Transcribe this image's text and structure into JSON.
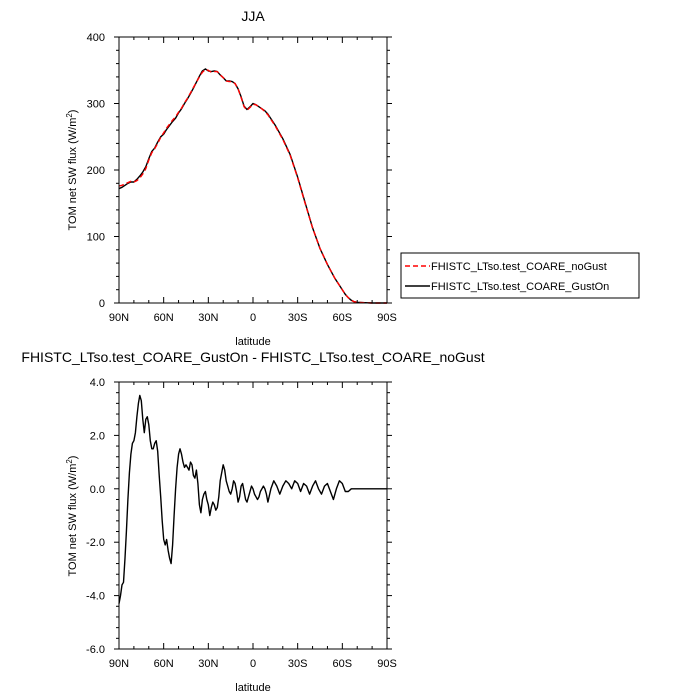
{
  "chart_data": [
    {
      "type": "line",
      "title": "JJA",
      "xlabel": "latitude",
      "ylabel": "TOM net SW flux (W/m",
      "ylabel_sup": "2",
      "ylabel_end": ")",
      "xlim": [
        90,
        -90
      ],
      "ylim": [
        0,
        400
      ],
      "x_ticks": [
        {
          "value": 90,
          "label": "90N"
        },
        {
          "value": 60,
          "label": "60N"
        },
        {
          "value": 30,
          "label": "30N"
        },
        {
          "value": 0,
          "label": "0"
        },
        {
          "value": -30,
          "label": "30S"
        },
        {
          "value": -60,
          "label": "60S"
        },
        {
          "value": -90,
          "label": "90S"
        }
      ],
      "y_ticks": [
        {
          "value": 0,
          "label": "0"
        },
        {
          "value": 100,
          "label": "100"
        },
        {
          "value": 200,
          "label": "200"
        },
        {
          "value": 300,
          "label": "300"
        },
        {
          "value": 400,
          "label": "400"
        }
      ],
      "legend": {
        "placement": "right"
      },
      "series": [
        {
          "name": "FHISTC_LTso.test_COARE_noGust",
          "color": "#ff0000",
          "dash": "dashed",
          "x": [
            90,
            88,
            86,
            84,
            82,
            80,
            78,
            76,
            74,
            72,
            70,
            68,
            66,
            64,
            62,
            60,
            58,
            56,
            54,
            52,
            50,
            48,
            46,
            44,
            42,
            40,
            38,
            36,
            34,
            32,
            30,
            28,
            26,
            24,
            22,
            20,
            18,
            16,
            14,
            12,
            10,
            8,
            6,
            4,
            2,
            0,
            -2,
            -4,
            -6,
            -8,
            -10,
            -15,
            -20,
            -25,
            -30,
            -35,
            -40,
            -45,
            -50,
            -55,
            -60,
            -62,
            -64,
            -66,
            -68,
            -70,
            -75,
            -80,
            -85,
            -90
          ],
          "y": [
            176,
            177,
            179,
            181,
            183,
            182,
            184,
            188,
            194,
            202,
            215,
            226,
            232,
            240,
            249,
            256,
            263,
            269,
            275,
            280,
            287,
            293,
            301,
            308,
            316,
            324,
            332,
            340,
            347,
            351,
            350,
            347,
            348,
            348,
            343,
            339,
            334,
            333,
            333,
            330,
            322,
            309,
            295,
            290,
            294,
            299,
            298,
            295,
            292,
            288,
            283,
            266,
            246,
            222,
            188,
            150,
            113,
            82,
            58,
            37,
            20,
            13,
            8,
            4,
            2,
            1,
            0.5,
            0,
            0,
            0
          ]
        },
        {
          "name": "FHISTC_LTso.test_COARE_GustOn",
          "color": "#000000",
          "dash": "solid",
          "x": [
            90,
            88,
            86,
            84,
            82,
            80,
            78,
            76,
            74,
            72,
            70,
            68,
            66,
            64,
            62,
            60,
            58,
            56,
            54,
            52,
            50,
            48,
            46,
            44,
            42,
            40,
            38,
            36,
            34,
            32,
            30,
            28,
            26,
            24,
            22,
            20,
            18,
            16,
            14,
            12,
            10,
            8,
            6,
            4,
            2,
            0,
            -2,
            -4,
            -6,
            -8,
            -10,
            -15,
            -20,
            -25,
            -30,
            -35,
            -40,
            -45,
            -50,
            -55,
            -60,
            -62,
            -64,
            -66,
            -68,
            -70,
            -75,
            -80,
            -85,
            -90
          ],
          "y": [
            172,
            174,
            177,
            180,
            182,
            182,
            186,
            191,
            197,
            205,
            217,
            228,
            233,
            242,
            250,
            254,
            261,
            267,
            273,
            278,
            286,
            292,
            300,
            307,
            315,
            323,
            332,
            341,
            349,
            352,
            349,
            348,
            349,
            348,
            343,
            339,
            334,
            334,
            333,
            330,
            322,
            310,
            296,
            291,
            295,
            300,
            298,
            295,
            292,
            289,
            284,
            267,
            247,
            223,
            189,
            151,
            113,
            82,
            58,
            37,
            20,
            13,
            8,
            4,
            2,
            1,
            0.5,
            0,
            0,
            0
          ]
        }
      ]
    },
    {
      "type": "line",
      "title": "FHISTC_LTso.test_COARE_GustOn - FHISTC_LTso.test_COARE_noGust",
      "xlabel": "latitude",
      "ylabel": "TOM net SW flux (W/m",
      "ylabel_sup": "2",
      "ylabel_end": ")",
      "xlim": [
        90,
        -90
      ],
      "ylim": [
        -6,
        4
      ],
      "x_ticks": [
        {
          "value": 90,
          "label": "90N"
        },
        {
          "value": 60,
          "label": "60N"
        },
        {
          "value": 30,
          "label": "30N"
        },
        {
          "value": 0,
          "label": "0"
        },
        {
          "value": -30,
          "label": "30S"
        },
        {
          "value": -60,
          "label": "60S"
        },
        {
          "value": -90,
          "label": "90S"
        }
      ],
      "y_ticks": [
        {
          "value": -6,
          "label": "-6.0"
        },
        {
          "value": -4,
          "label": "-4.0"
        },
        {
          "value": -2,
          "label": "-2.0"
        },
        {
          "value": 0,
          "label": "0.0"
        },
        {
          "value": 2,
          "label": "2.0"
        },
        {
          "value": 4,
          "label": "4.0"
        }
      ],
      "series": [
        {
          "name": "",
          "color": "#000000",
          "dash": "solid",
          "x": [
            90,
            89,
            88,
            87,
            86,
            85,
            84,
            83,
            82,
            81,
            80,
            79,
            78,
            77,
            76,
            75,
            74,
            73,
            72,
            71,
            70,
            69,
            68,
            67,
            66,
            65,
            64,
            63,
            62,
            61,
            60,
            59,
            58,
            57,
            56,
            55,
            54,
            53,
            52,
            51,
            50,
            49,
            48,
            47,
            46,
            45,
            44,
            43,
            42,
            41,
            40,
            39,
            38,
            37,
            36,
            35,
            34,
            33,
            32,
            31,
            30,
            29,
            28,
            27,
            26,
            25,
            24,
            23,
            22,
            21,
            20,
            19,
            18,
            17,
            16,
            15,
            14,
            13,
            12,
            11,
            10,
            9,
            8,
            7,
            6,
            5,
            4,
            3,
            2,
            1,
            0,
            -1,
            -2,
            -3,
            -4,
            -5,
            -6,
            -7,
            -8,
            -9,
            -10,
            -12,
            -14,
            -16,
            -18,
            -20,
            -22,
            -24,
            -26,
            -28,
            -30,
            -32,
            -34,
            -36,
            -38,
            -40,
            -42,
            -44,
            -46,
            -48,
            -50,
            -52,
            -54,
            -56,
            -58,
            -60,
            -62,
            -64,
            -66,
            -68,
            -70,
            -75,
            -80,
            -85,
            -90
          ],
          "y": [
            -4.3,
            -4.0,
            -3.6,
            -3.5,
            -2.6,
            -1.6,
            -0.4,
            0.6,
            1.3,
            1.7,
            1.8,
            2.1,
            2.7,
            3.2,
            3.5,
            3.3,
            2.6,
            2.1,
            2.6,
            2.7,
            2.4,
            1.8,
            1.5,
            1.5,
            1.7,
            1.8,
            1.4,
            0.5,
            -0.3,
            -1.2,
            -1.9,
            -2.1,
            -1.9,
            -2.3,
            -2.6,
            -2.8,
            -2.1,
            -1.0,
            0.0,
            0.8,
            1.3,
            1.5,
            1.3,
            1.0,
            0.8,
            0.9,
            0.8,
            0.7,
            1.0,
            0.9,
            0.5,
            0.4,
            0.7,
            0.2,
            -0.6,
            -0.9,
            -0.4,
            -0.2,
            -0.1,
            -0.4,
            -0.6,
            -1.0,
            -0.7,
            -0.5,
            -0.6,
            -0.8,
            -0.7,
            -0.3,
            0.3,
            0.6,
            0.9,
            0.7,
            0.3,
            0.1,
            -0.1,
            -0.2,
            0.0,
            0.3,
            0.2,
            -0.1,
            -0.5,
            -0.3,
            0.1,
            0.2,
            -0.1,
            -0.4,
            -0.5,
            -0.3,
            -0.1,
            0.1,
            0.0,
            -0.2,
            -0.3,
            -0.4,
            -0.3,
            -0.1,
            0.0,
            0.1,
            0.0,
            -0.2,
            -0.5,
            0.0,
            0.3,
            0.1,
            -0.2,
            0.1,
            0.3,
            0.2,
            0.0,
            0.3,
            0.2,
            -0.1,
            0.2,
            0.1,
            -0.2,
            0.1,
            0.3,
            0.0,
            -0.2,
            0.1,
            0.2,
            -0.1,
            -0.4,
            0.0,
            0.3,
            0.2,
            -0.1,
            -0.1,
            0.0,
            0.0,
            0.0,
            0.0,
            0.0,
            0.0,
            0.0
          ]
        }
      ]
    }
  ]
}
